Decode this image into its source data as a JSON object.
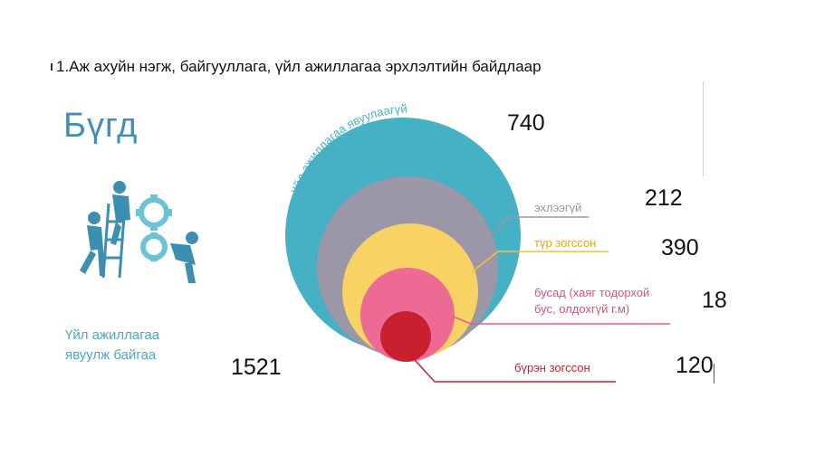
{
  "title": "1.Аж ахуйн нэгж, байгууллага, үйл ажиллагаа эрхлэлтийн байдлаар",
  "heading": "Бүгд",
  "active": {
    "label_line1": "Үйл ажиллагаа",
    "label_line2": "явуулж байгаа",
    "value": "1521"
  },
  "inactive": {
    "arc_label": "Үйл ажиллагаа явуулаагүй",
    "value": "740"
  },
  "categories": [
    {
      "key": "not_started",
      "label": "эхлээгүй",
      "value": "212",
      "color": "#9b96a8"
    },
    {
      "key": "temp_stopped",
      "label": "түр зогссон",
      "value": "390",
      "color": "#f3c23a"
    },
    {
      "key": "other",
      "label_line1": "бусад (хаяг тодорхой",
      "label_line2": "бус, олдохгүй г.м)",
      "value": "18",
      "color": "#ea5a8a"
    },
    {
      "key": "fully_stopped",
      "label": "бүрэн зогссон",
      "value": "120",
      "color": "#c8202f"
    }
  ],
  "colors": {
    "outer_circle": "#46b1c4",
    "heading": "#3f8fb6",
    "illustration": "#3c8fb0"
  },
  "icons": {
    "illustration": "people-with-gears-icon"
  }
}
